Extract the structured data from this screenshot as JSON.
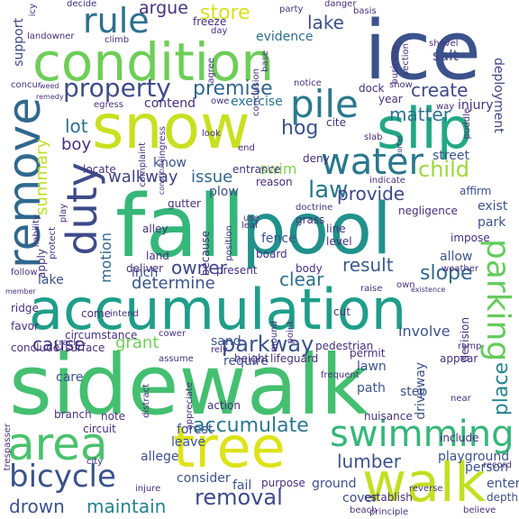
{
  "words": {
    "sidewalk": "sidewalk",
    "fall": "fall",
    "pool": "pool",
    "accumulation": "accumulation",
    "condition": "condition",
    "ice": "ice",
    "snow": "snow",
    "slip": "slip",
    "tree": "tree",
    "walk": "walk",
    "area": "area",
    "remove": "remove",
    "duty": "duty",
    "parking": "parking",
    "swimming": "swimming",
    "bicycle": "bicycle",
    "water": "water",
    "pile": "pile",
    "rule": "rule",
    "property": "property",
    "premise": "premise",
    "store": "store",
    "argue": "argue",
    "create": "create",
    "matter": "matter",
    "lake": "lake",
    "hog": "hog",
    "child": "child",
    "law": "law",
    "provide": "provide",
    "walkway": "walkway",
    "issue": "issue",
    "swim": "swim",
    "lot": "lot",
    "boy": "boy",
    "owner": "owner",
    "result": "result",
    "slope": "slope",
    "determine": "determine",
    "clear": "clear",
    "cause": "cause",
    "grant": "grant",
    "parkway": "parkway",
    "accumulate": "accumulate",
    "lumber": "lumber",
    "removal": "removal",
    "maintain": "maintain",
    "drown": "drown",
    "place": "place",
    "summary": "summary",
    "motion": "motion",
    "support": "support",
    "exercise": "exercise",
    "contend": "contend",
    "evidence": "evidence",
    "salt": "salt",
    "fence": "fence",
    "plow": "plow",
    "deployment": "deployment",
    "injury": "injury",
    "street": "street",
    "affirm": "affirm",
    "exist": "exist",
    "park": "park",
    "allow": "allow",
    "sand": "sand",
    "require": "require",
    "involve": "involve",
    "lawn": "lawn",
    "driveway": "driveway",
    "step": "step",
    "playground": "playground",
    "person": "person",
    "enter": "enter",
    "depth": "depth",
    "cover": "cover",
    "ground": "ground",
    "forest": "forest",
    "leave": "leave",
    "allege": "allege",
    "consider": "consider",
    "fail": "fail",
    "care": "care",
    "path": "path",
    "inch": "inch",
    "know": "know",
    "freeze": "freeze",
    "land": "land",
    "board": "board",
    "reason": "reason",
    "negligence": "negligence",
    "pedestrian": "pedestrian",
    "lifeguard": "lifeguard",
    "nuisance": "nuisance",
    "circumstance": "circumstance",
    "surface": "surface",
    "conclude": "conclude",
    "come": "come",
    "cite": "cite",
    "dock": "dock",
    "year": "year",
    "entrance": "entrance",
    "alley": "alley",
    "gutter": "gutter",
    "grass": "grass",
    "line": "line",
    "level": "level",
    "deliver": "deliver",
    "present": "present",
    "body": "body",
    "cut": "cut",
    "permit": "permit",
    "action": "action",
    "purpose": "purpose",
    "circuit": "circuit",
    "branch": "branch",
    "note": "note",
    "include": "include",
    "establish": "establish",
    "beach": "beach",
    "principle": "principle",
    "believe": "believe",
    "height": "height",
    "frequent": "frequent",
    "appear": "appear",
    "ramp": "ramp",
    "decision": "decision",
    "weather": "weather",
    "impose": "impose",
    "deny": "deny",
    "locate": "locate",
    "apply": "apply",
    "ridge": "ridge",
    "favor": "favor",
    "landowner": "landowner",
    "climb": "climb",
    "concur": "concur",
    "egress": "egress",
    "decide": "decide",
    "icy": "icy",
    "party": "party",
    "basis": "basis",
    "day": "day",
    "shovel": "shovel",
    "notice": "notice",
    "show": "show",
    "look": "look",
    "way": "way",
    "slab": "slab",
    "indicate": "indicate",
    "doctrine": "doctrine",
    "use": "use",
    "assume": "assume",
    "rely": "rely",
    "injure": "injure",
    "city": "city",
    "member": "member",
    "follow": "follow",
    "trespasser": "trespasser",
    "crack": "crack",
    "intend": "intend",
    "cower": "cower",
    "raise": "raise",
    "own": "own",
    "existence": "existence",
    "record": "record",
    "reverse": "reverse",
    "near": "near",
    "mound": "mound",
    "point": "point",
    "position": "position",
    "leaf": "leaf",
    "because": "because",
    "agree": "agree",
    "owe": "owe",
    "end": "end",
    "ingress": "ingress",
    "complaint": "complaint",
    "constitute": "constitute",
    "play": "play",
    "protect": "protect",
    "liability": "liability",
    "conclusion": "conclusion",
    "base": "base",
    "danger": "danger",
    "business": "business",
    "section": "section",
    "puddle": "puddle",
    "cortar": "cortar",
    "remedy": "remedy",
    "weed": "weed",
    "distract": "distract",
    "appreciate": "appreciate"
  },
  "colors": {
    "background": "#ffffff",
    "palette": [
      "#440154",
      "#46327e",
      "#3b528b",
      "#31688e",
      "#21918c",
      "#35b779",
      "#6ece58",
      "#c8e020",
      "#fde725"
    ]
  }
}
